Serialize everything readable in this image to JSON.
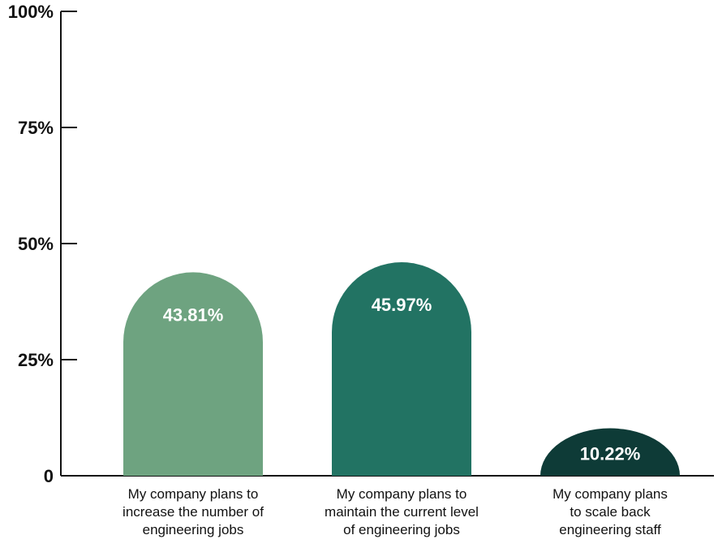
{
  "chart_data": {
    "type": "bar",
    "categories": [
      [
        "My company plans to",
        "increase the number of",
        "engineering jobs"
      ],
      [
        "My company plans to",
        "maintain the current level",
        "of engineering jobs"
      ],
      [
        "My company plans",
        "to scale back",
        "engineering staff"
      ]
    ],
    "values": [
      43.81,
      45.97,
      10.22
    ],
    "value_labels": [
      "43.81%",
      "45.97%",
      "10.22%"
    ],
    "colors": [
      "#6ea380",
      "#227363",
      "#0e3b37"
    ],
    "ylim": [
      0,
      100
    ],
    "yticks": [
      0,
      25,
      50,
      75,
      100
    ],
    "ytick_labels": [
      "0",
      "25%",
      "50%",
      "75%",
      "100%"
    ],
    "grid": false,
    "bar_shape": "rounded-top"
  }
}
